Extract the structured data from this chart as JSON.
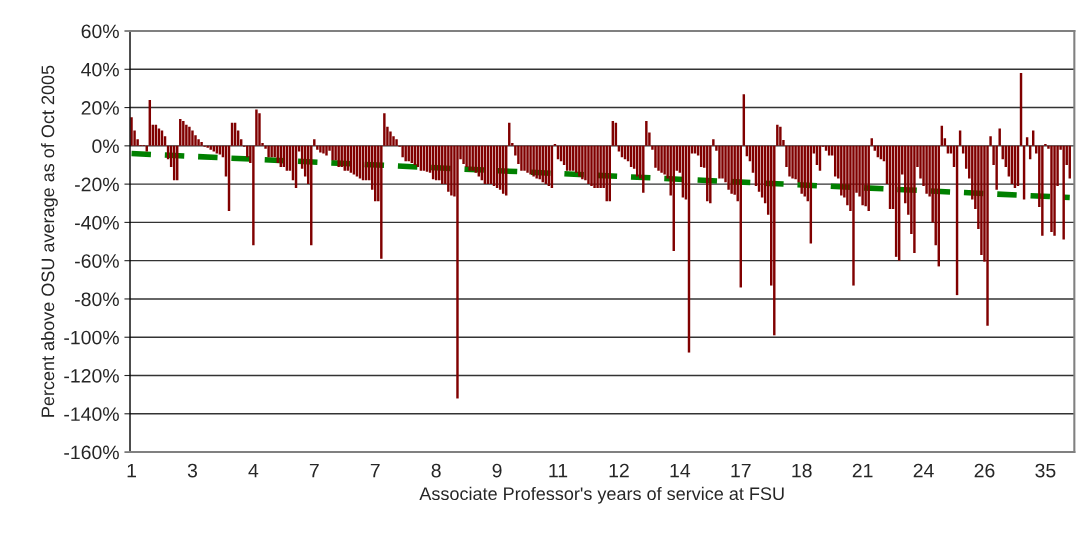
{
  "chart_data": {
    "type": "bar",
    "xlabel": "Associate Professor's years of service at FSU",
    "ylabel": "Percent above OSU average as of Oct 2005",
    "categories": [
      "1",
      null,
      null,
      null,
      null,
      null,
      null,
      null,
      null,
      null,
      null,
      null,
      null,
      null,
      null,
      null,
      null,
      null,
      null,
      null,
      "3",
      null,
      null,
      null,
      null,
      null,
      null,
      null,
      null,
      null,
      null,
      null,
      null,
      null,
      null,
      null,
      null,
      null,
      null,
      null,
      "4",
      null,
      null,
      null,
      null,
      null,
      null,
      null,
      null,
      null,
      null,
      null,
      null,
      null,
      null,
      null,
      null,
      null,
      null,
      null,
      "7",
      null,
      null,
      null,
      null,
      null,
      null,
      null,
      null,
      null,
      null,
      null,
      null,
      null,
      null,
      null,
      null,
      null,
      null,
      null,
      "7",
      null,
      null,
      null,
      null,
      null,
      null,
      null,
      null,
      null,
      null,
      null,
      null,
      null,
      null,
      null,
      null,
      null,
      null,
      null,
      "8",
      null,
      null,
      null,
      null,
      null,
      null,
      null,
      null,
      null,
      null,
      null,
      null,
      null,
      null,
      null,
      null,
      null,
      null,
      null,
      "9",
      null,
      null,
      null,
      null,
      null,
      null,
      null,
      null,
      null,
      null,
      null,
      null,
      null,
      null,
      null,
      null,
      null,
      null,
      null,
      "11",
      null,
      null,
      null,
      null,
      null,
      null,
      null,
      null,
      null,
      null,
      null,
      null,
      null,
      null,
      null,
      null,
      null,
      null,
      null,
      "12",
      null,
      null,
      null,
      null,
      null,
      null,
      null,
      null,
      null,
      null,
      null,
      null,
      null,
      null,
      null,
      null,
      null,
      null,
      null,
      "14",
      null,
      null,
      null,
      null,
      null,
      null,
      null,
      null,
      null,
      null,
      null,
      null,
      null,
      null,
      null,
      null,
      null,
      null,
      null,
      "17",
      null,
      null,
      null,
      null,
      null,
      null,
      null,
      null,
      null,
      null,
      null,
      null,
      null,
      null,
      null,
      null,
      null,
      null,
      null,
      "18",
      null,
      null,
      null,
      null,
      null,
      null,
      null,
      null,
      null,
      null,
      null,
      null,
      null,
      null,
      null,
      null,
      null,
      null,
      null,
      "21",
      null,
      null,
      null,
      null,
      null,
      null,
      null,
      null,
      null,
      null,
      null,
      null,
      null,
      null,
      null,
      null,
      null,
      null,
      null,
      "24",
      null,
      null,
      null,
      null,
      null,
      null,
      null,
      null,
      null,
      null,
      null,
      null,
      null,
      null,
      null,
      null,
      null,
      null,
      null,
      "26",
      null,
      null,
      null,
      null,
      null,
      null,
      null,
      null,
      null,
      null,
      null,
      null,
      null,
      null,
      null,
      null,
      null,
      null,
      null,
      "35",
      null,
      null,
      null,
      null,
      null,
      null,
      null,
      null
    ],
    "series": [
      {
        "color": "#800000",
        "values": [
          15,
          8,
          3.5,
          0.5,
          0.5,
          -3,
          24,
          11,
          11,
          9,
          8,
          5,
          -7,
          -11,
          -18,
          -18,
          14,
          13,
          11,
          10,
          8,
          5.5,
          3.5,
          2,
          -0.5,
          -1,
          -2,
          -3,
          -4,
          -4.5,
          -6,
          -16,
          -34,
          12,
          12,
          8,
          3.5,
          -0.5,
          -6,
          -9,
          -52,
          19,
          17,
          1.5,
          -1.5,
          -6,
          -6,
          -6,
          -9,
          -11,
          -11,
          -13,
          -13,
          -18,
          -22,
          -3,
          -12,
          -16,
          -20,
          -52,
          3.5,
          -2,
          -3.5,
          -4,
          -5,
          -2.5,
          -7.5,
          -7.5,
          -11,
          -11,
          -13,
          -13,
          -14,
          -15,
          -16,
          -17,
          -18,
          -18,
          -18,
          -23,
          -29,
          -29,
          -59,
          17,
          10,
          7.5,
          5,
          3.5,
          -0.5,
          -6,
          -8,
          -8,
          -9,
          -10,
          -11,
          -13,
          -13,
          -13.5,
          -14,
          -17.5,
          -18,
          -18,
          -20,
          -20,
          -24,
          -26,
          -26.5,
          -132,
          -7,
          -9.5,
          -11,
          -13,
          -13,
          -14,
          -16,
          -18,
          -20,
          -20,
          -20,
          -21,
          -22,
          -23,
          -25,
          -26,
          12,
          1.5,
          -5,
          -9.5,
          -13,
          -13,
          -14,
          -15,
          -16,
          -17,
          -17.5,
          -19,
          -20,
          -21,
          -22,
          1,
          -7,
          -8,
          -10,
          -13,
          -13,
          -13,
          -14,
          -16,
          -17.5,
          -18,
          -20,
          -21,
          -22,
          -22,
          -22,
          -22,
          -29,
          -29,
          13,
          12,
          -3,
          -6,
          -7,
          -8,
          -11,
          -12,
          -16,
          -17,
          -24.5,
          13,
          7,
          -2,
          -11.5,
          -13,
          -14,
          -15,
          -17,
          -26,
          -55,
          -13,
          -14,
          -27,
          -28,
          -108,
          -4,
          -4,
          -5,
          -11,
          -11.5,
          -29,
          -30,
          3.5,
          -2.5,
          -17,
          -17,
          -19,
          -23,
          -25,
          -25.5,
          -29,
          -74,
          27,
          -5.5,
          -8,
          -14,
          -21,
          -24,
          -27,
          -30,
          -36,
          -73,
          -99,
          11,
          10,
          3,
          -11,
          -16,
          -17,
          -17.5,
          -19,
          -25,
          -26.5,
          -29,
          -51,
          -4,
          -10,
          -13,
          -0.5,
          -2.5,
          -5,
          -5,
          -16,
          -17,
          -26,
          -27,
          -31,
          -34,
          -73,
          -24.5,
          -26.5,
          -31,
          -31.5,
          -34,
          4,
          -2.5,
          -6,
          -7,
          -8,
          -20,
          -33,
          -33,
          -58,
          -60,
          -15,
          -30,
          -36,
          -46,
          -56,
          -11,
          -17,
          -21,
          -25,
          -26.5,
          -40,
          -52,
          -63,
          10.5,
          4,
          -4,
          -4,
          -11,
          -78,
          8,
          -4,
          -12,
          -17,
          -28,
          -33,
          -43.5,
          -57,
          -60.5,
          -94,
          5,
          -10,
          -23,
          9,
          -7,
          -11,
          -16,
          -20,
          -22,
          -21,
          38,
          -28,
          4.5,
          -7,
          8,
          -4,
          -32,
          -47,
          1,
          -1.5,
          -45,
          -47,
          -21,
          -2,
          -49,
          -10,
          -17
        ]
      },
      {
        "type": "line",
        "color": "#008000",
        "line_style": "dashed",
        "values": [
          -4,
          null,
          null,
          null,
          null,
          null,
          null,
          null,
          null,
          null,
          null,
          null,
          null,
          null,
          null,
          null,
          null,
          null,
          null,
          null,
          null,
          null,
          null,
          null,
          null,
          null,
          null,
          null,
          null,
          null,
          null,
          null,
          null,
          null,
          null,
          null,
          null,
          null,
          null,
          null,
          null,
          null,
          null,
          null,
          null,
          null,
          null,
          null,
          null,
          null,
          null,
          null,
          null,
          null,
          null,
          null,
          null,
          null,
          null,
          null,
          null,
          null,
          null,
          null,
          null,
          null,
          null,
          null,
          null,
          null,
          null,
          null,
          null,
          null,
          null,
          null,
          null,
          null,
          null,
          null,
          null,
          null,
          null,
          null,
          null,
          null,
          null,
          null,
          null,
          null,
          null,
          null,
          null,
          null,
          null,
          null,
          null,
          null,
          null,
          null,
          null,
          null,
          null,
          null,
          null,
          null,
          null,
          null,
          null,
          null,
          null,
          null,
          null,
          null,
          null,
          null,
          null,
          null,
          null,
          null,
          null,
          null,
          null,
          null,
          null,
          null,
          null,
          null,
          null,
          null,
          null,
          null,
          null,
          null,
          null,
          null,
          null,
          null,
          null,
          null,
          null,
          null,
          null,
          null,
          null,
          null,
          null,
          null,
          null,
          null,
          null,
          null,
          null,
          null,
          null,
          null,
          null,
          null,
          null,
          null,
          null,
          null,
          null,
          null,
          null,
          null,
          null,
          null,
          null,
          null,
          null,
          null,
          null,
          null,
          null,
          null,
          null,
          null,
          null,
          null,
          null,
          null,
          null,
          null,
          null,
          null,
          null,
          null,
          null,
          null,
          null,
          null,
          null,
          null,
          null,
          null,
          null,
          null,
          null,
          null,
          null,
          null,
          null,
          null,
          null,
          null,
          null,
          null,
          null,
          null,
          null,
          null,
          null,
          null,
          null,
          null,
          null,
          null,
          null,
          null,
          null,
          null,
          null,
          null,
          null,
          null,
          null,
          null,
          null,
          null,
          null,
          null,
          null,
          null,
          null,
          null,
          null,
          null,
          null,
          null,
          null,
          null,
          null,
          null,
          null,
          null,
          null,
          null,
          null,
          null,
          null,
          null,
          null,
          null,
          null,
          null,
          null,
          null,
          null,
          null,
          null,
          null,
          null,
          null,
          null,
          null,
          null,
          null,
          null,
          null,
          null,
          null,
          null,
          null,
          null,
          null,
          null,
          null,
          null,
          null,
          null,
          null,
          null,
          null,
          null,
          null,
          null,
          null,
          null,
          null,
          null,
          null,
          null,
          null,
          null,
          null,
          null,
          null,
          null,
          null,
          null,
          null,
          null,
          null,
          null,
          null,
          null,
          null,
          -27
        ]
      }
    ],
    "ylim": [
      -160,
      60
    ],
    "yticks": [
      {
        "value": -160,
        "label": "-160%"
      },
      {
        "value": -140,
        "label": "-140%"
      },
      {
        "value": -120,
        "label": "-120%"
      },
      {
        "value": -100,
        "label": "-100%"
      },
      {
        "value": -80,
        "label": "-80%"
      },
      {
        "value": -60,
        "label": "-60%"
      },
      {
        "value": -40,
        "label": "-40%"
      },
      {
        "value": -20,
        "label": "-20%"
      },
      {
        "value": 0,
        "label": "0%"
      },
      {
        "value": 20,
        "label": "20%"
      },
      {
        "value": 40,
        "label": "40%"
      },
      {
        "value": 60,
        "label": "60%"
      }
    ],
    "grid": "y"
  }
}
